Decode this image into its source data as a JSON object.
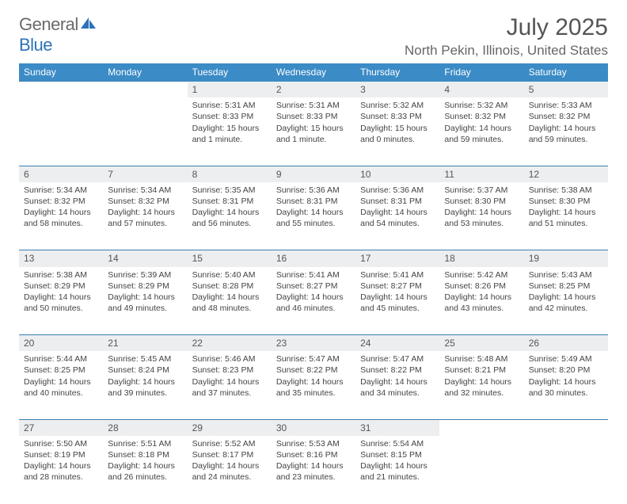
{
  "brand": {
    "word1": "General",
    "word2": "Blue"
  },
  "title": {
    "month_year": "July 2025",
    "location": "North Pekin, Illinois, United States"
  },
  "colors": {
    "header_bg": "#3b8bc6",
    "header_text": "#ffffff",
    "daynum_bg": "#eceeef",
    "rule": "#3b7fb0",
    "body_text": "#444444",
    "title_text": "#555555",
    "location_text": "#666666",
    "logo_gray": "#6a6a6a",
    "logo_blue": "#2d72b8",
    "logo_mark": "#2d72b8"
  },
  "typography": {
    "month_year_fontsize": 30,
    "location_fontsize": 17,
    "weekday_fontsize": 12,
    "daynum_fontsize": 12,
    "cell_fontsize": 10.5
  },
  "weekdays": [
    "Sunday",
    "Monday",
    "Tuesday",
    "Wednesday",
    "Thursday",
    "Friday",
    "Saturday"
  ],
  "weeks": [
    [
      null,
      null,
      {
        "d": "1",
        "sr": "5:31 AM",
        "ss": "8:33 PM",
        "dl": "15 hours and 1 minute."
      },
      {
        "d": "2",
        "sr": "5:31 AM",
        "ss": "8:33 PM",
        "dl": "15 hours and 1 minute."
      },
      {
        "d": "3",
        "sr": "5:32 AM",
        "ss": "8:33 PM",
        "dl": "15 hours and 0 minutes."
      },
      {
        "d": "4",
        "sr": "5:32 AM",
        "ss": "8:32 PM",
        "dl": "14 hours and 59 minutes."
      },
      {
        "d": "5",
        "sr": "5:33 AM",
        "ss": "8:32 PM",
        "dl": "14 hours and 59 minutes."
      }
    ],
    [
      {
        "d": "6",
        "sr": "5:34 AM",
        "ss": "8:32 PM",
        "dl": "14 hours and 58 minutes."
      },
      {
        "d": "7",
        "sr": "5:34 AM",
        "ss": "8:32 PM",
        "dl": "14 hours and 57 minutes."
      },
      {
        "d": "8",
        "sr": "5:35 AM",
        "ss": "8:31 PM",
        "dl": "14 hours and 56 minutes."
      },
      {
        "d": "9",
        "sr": "5:36 AM",
        "ss": "8:31 PM",
        "dl": "14 hours and 55 minutes."
      },
      {
        "d": "10",
        "sr": "5:36 AM",
        "ss": "8:31 PM",
        "dl": "14 hours and 54 minutes."
      },
      {
        "d": "11",
        "sr": "5:37 AM",
        "ss": "8:30 PM",
        "dl": "14 hours and 53 minutes."
      },
      {
        "d": "12",
        "sr": "5:38 AM",
        "ss": "8:30 PM",
        "dl": "14 hours and 51 minutes."
      }
    ],
    [
      {
        "d": "13",
        "sr": "5:38 AM",
        "ss": "8:29 PM",
        "dl": "14 hours and 50 minutes."
      },
      {
        "d": "14",
        "sr": "5:39 AM",
        "ss": "8:29 PM",
        "dl": "14 hours and 49 minutes."
      },
      {
        "d": "15",
        "sr": "5:40 AM",
        "ss": "8:28 PM",
        "dl": "14 hours and 48 minutes."
      },
      {
        "d": "16",
        "sr": "5:41 AM",
        "ss": "8:27 PM",
        "dl": "14 hours and 46 minutes."
      },
      {
        "d": "17",
        "sr": "5:41 AM",
        "ss": "8:27 PM",
        "dl": "14 hours and 45 minutes."
      },
      {
        "d": "18",
        "sr": "5:42 AM",
        "ss": "8:26 PM",
        "dl": "14 hours and 43 minutes."
      },
      {
        "d": "19",
        "sr": "5:43 AM",
        "ss": "8:25 PM",
        "dl": "14 hours and 42 minutes."
      }
    ],
    [
      {
        "d": "20",
        "sr": "5:44 AM",
        "ss": "8:25 PM",
        "dl": "14 hours and 40 minutes."
      },
      {
        "d": "21",
        "sr": "5:45 AM",
        "ss": "8:24 PM",
        "dl": "14 hours and 39 minutes."
      },
      {
        "d": "22",
        "sr": "5:46 AM",
        "ss": "8:23 PM",
        "dl": "14 hours and 37 minutes."
      },
      {
        "d": "23",
        "sr": "5:47 AM",
        "ss": "8:22 PM",
        "dl": "14 hours and 35 minutes."
      },
      {
        "d": "24",
        "sr": "5:47 AM",
        "ss": "8:22 PM",
        "dl": "14 hours and 34 minutes."
      },
      {
        "d": "25",
        "sr": "5:48 AM",
        "ss": "8:21 PM",
        "dl": "14 hours and 32 minutes."
      },
      {
        "d": "26",
        "sr": "5:49 AM",
        "ss": "8:20 PM",
        "dl": "14 hours and 30 minutes."
      }
    ],
    [
      {
        "d": "27",
        "sr": "5:50 AM",
        "ss": "8:19 PM",
        "dl": "14 hours and 28 minutes."
      },
      {
        "d": "28",
        "sr": "5:51 AM",
        "ss": "8:18 PM",
        "dl": "14 hours and 26 minutes."
      },
      {
        "d": "29",
        "sr": "5:52 AM",
        "ss": "8:17 PM",
        "dl": "14 hours and 24 minutes."
      },
      {
        "d": "30",
        "sr": "5:53 AM",
        "ss": "8:16 PM",
        "dl": "14 hours and 23 minutes."
      },
      {
        "d": "31",
        "sr": "5:54 AM",
        "ss": "8:15 PM",
        "dl": "14 hours and 21 minutes."
      },
      null,
      null
    ]
  ]
}
